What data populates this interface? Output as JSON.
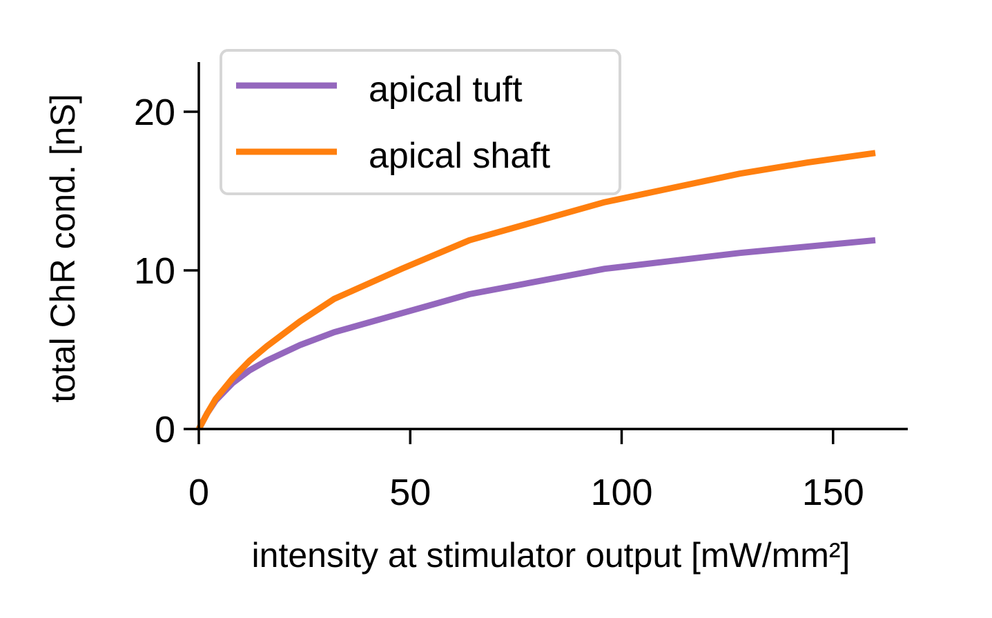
{
  "chart_data": {
    "type": "line",
    "title": "",
    "xlabel": "intensity at stimulator output [mW/mm²]",
    "ylabel": "total ChR cond. [nS]",
    "xlim": [
      0,
      168
    ],
    "ylim": [
      0,
      23
    ],
    "xticks": [
      0,
      50,
      100,
      150
    ],
    "yticks": [
      0,
      10,
      20
    ],
    "grid": false,
    "legend_position": "top-left",
    "series": [
      {
        "name": "apical tuft",
        "color": "#9467bd",
        "x": [
          0,
          2,
          4,
          8,
          12,
          16,
          20,
          24,
          32,
          48,
          64,
          80,
          96,
          112,
          128,
          144,
          160
        ],
        "y": [
          0,
          1.0,
          1.8,
          2.9,
          3.7,
          4.3,
          4.8,
          5.3,
          6.1,
          7.3,
          8.5,
          9.3,
          10.1,
          10.6,
          11.1,
          11.5,
          11.9
        ]
      },
      {
        "name": "apical shaft",
        "color": "#ff7f0e",
        "x": [
          0,
          2,
          4,
          8,
          12,
          16,
          20,
          24,
          32,
          48,
          64,
          80,
          96,
          112,
          128,
          144,
          160
        ],
        "y": [
          0,
          1.0,
          1.9,
          3.2,
          4.3,
          5.2,
          6.0,
          6.8,
          8.2,
          10.1,
          11.9,
          13.1,
          14.3,
          15.2,
          16.1,
          16.8,
          17.4
        ]
      }
    ]
  }
}
